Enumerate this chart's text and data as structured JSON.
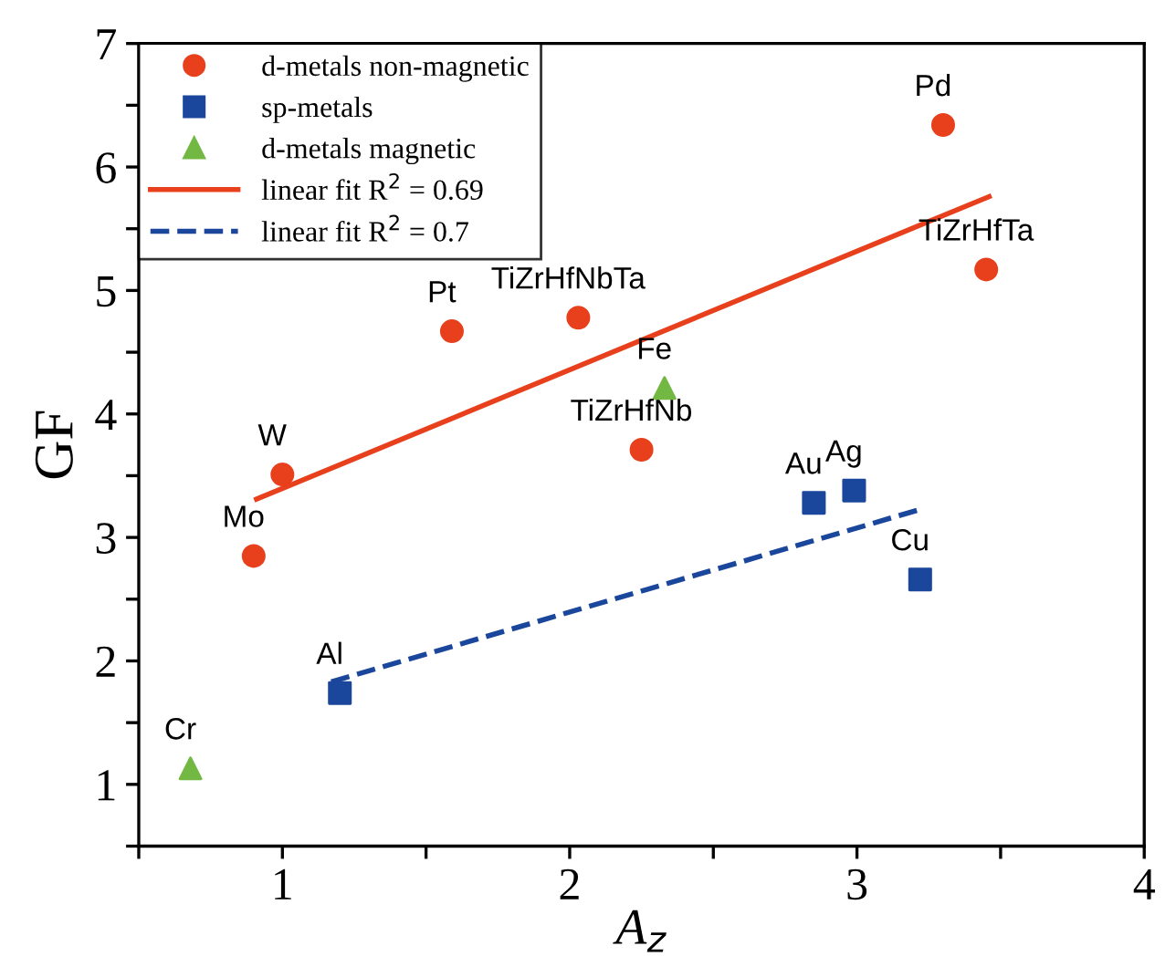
{
  "chart_data": {
    "type": "scatter",
    "xlabel": "A$_{z}$",
    "ylabel": "GF",
    "xlim": [
      0.5,
      4
    ],
    "ylim": [
      0.5,
      7
    ],
    "xticks": [
      {
        "value": 0.5,
        "label": null
      },
      1,
      {
        "value": 1.5,
        "label": null
      },
      2,
      {
        "value": 2.5,
        "label": null
      },
      3,
      {
        "value": 3.5,
        "label": null
      },
      4
    ],
    "yticks": [
      {
        "value": 0.5,
        "label": null
      },
      1,
      {
        "value": 1.5,
        "label": null
      },
      2,
      {
        "value": 2.5,
        "label": null
      },
      3,
      {
        "value": 3.5,
        "label": null
      },
      4,
      {
        "value": 4.5,
        "label": null
      },
      5,
      {
        "value": 5.5,
        "label": null
      },
      6,
      {
        "value": 6.5,
        "label": null
      },
      7
    ],
    "grid": false,
    "legend": "top left",
    "series": [
      {
        "name": "d-metals non-magnetic",
        "marker": "circle",
        "color": "#e8401c",
        "x": [
          0.9,
          1.0,
          1.59,
          2.03,
          2.25,
          3.3,
          3.45
        ],
        "values": [
          2.85,
          3.51,
          4.67,
          4.78,
          3.71,
          6.34,
          5.17
        ]
      },
      {
        "name": "sp-metals",
        "marker": "square",
        "color": "#1a469c",
        "x": [
          1.2,
          2.85,
          2.99,
          3.22
        ],
        "values": [
          1.74,
          3.28,
          3.38,
          2.66
        ]
      },
      {
        "name": "d-metals magnetic",
        "marker": "triangle",
        "color": "#72b843",
        "x": [
          0.68,
          2.33
        ],
        "values": [
          1.13,
          4.21
        ]
      },
      {
        "name": "linear fit R$^{2}$ = 0.69",
        "type": "line",
        "line_style": "solid",
        "color": "#e8401c",
        "x": [
          0.91,
          3.46
        ],
        "values": [
          3.31,
          5.76
        ]
      },
      {
        "name": "linear fit R$^{2}$ = 0.7",
        "type": "line",
        "line_style": "dashed",
        "color": "#1a469c",
        "x": [
          1.17,
          3.21
        ],
        "values": [
          1.83,
          3.22
        ]
      }
    ],
    "annotations": [
      {
        "text": "Cr",
        "x": 0.68,
        "y": 1.13
      },
      {
        "text": "Mo",
        "x": 0.9,
        "y": 2.85
      },
      {
        "text": "W",
        "x": 1.0,
        "y": 3.51
      },
      {
        "text": "Pt",
        "x": 1.59,
        "y": 4.67
      },
      {
        "text": "TiZrHfNbTa",
        "x": 2.03,
        "y": 4.78
      },
      {
        "text": "TiZrHfNb",
        "x": 2.25,
        "y": 3.71
      },
      {
        "text": "Fe",
        "x": 2.33,
        "y": 4.21
      },
      {
        "text": "Pd",
        "x": 3.3,
        "y": 6.34
      },
      {
        "text": "TiZrHfTa",
        "x": 3.45,
        "y": 5.17
      },
      {
        "text": "Au",
        "x": 2.85,
        "y": 3.28
      },
      {
        "text": "Ag",
        "x": 2.99,
        "y": 3.38
      },
      {
        "text": "Cu",
        "x": 3.22,
        "y": 2.66
      },
      {
        "text": "Al",
        "x": 1.2,
        "y": 1.74
      }
    ]
  }
}
